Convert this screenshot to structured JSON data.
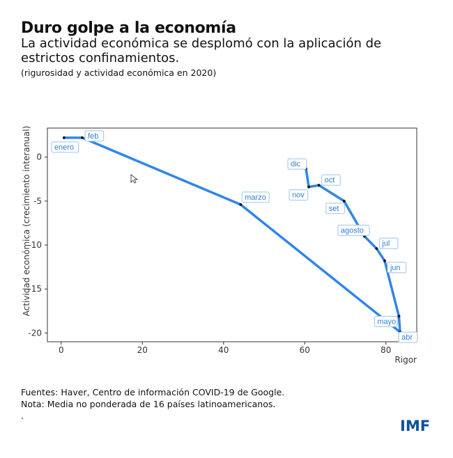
{
  "title": "Duro golpe a la economía",
  "subtitle": "La actividad económica se desplomó con la aplicación de estrictos confinamientos.",
  "note": "(rigurosidad y actividad económica en 2020)",
  "sources": [
    "Fuentes: Haver, Centro de información COVID-19 de Google.",
    "Nota: Media no ponderada de 16 países latinoamericanos.",
    "."
  ],
  "logo": "IMF",
  "chart_data": {
    "type": "line",
    "xlabel": "Rigor",
    "ylabel": "Actividad económica (crecimiento interanual)",
    "xlim": [
      -3.4,
      87.6
    ],
    "ylim": [
      -21,
      3.3
    ],
    "xticks": [
      0,
      20,
      40,
      60,
      80
    ],
    "yticks": [
      0,
      -5,
      -10,
      -15,
      -20
    ],
    "grid": false,
    "line_color": "#2f86e8",
    "points": [
      {
        "label": "enero",
        "x": 0.7,
        "y": 2.2
      },
      {
        "label": "feb",
        "x": 5.2,
        "y": 2.2
      },
      {
        "label": "marzo",
        "x": 44.2,
        "y": -5.4
      },
      {
        "label": "abr",
        "x": 83.5,
        "y": -19.9
      },
      {
        "label": "mayo",
        "x": 83.2,
        "y": -18.1
      },
      {
        "label": "jun",
        "x": 79.7,
        "y": -11.8
      },
      {
        "label": "jul",
        "x": 77.7,
        "y": -10.4
      },
      {
        "label": "agosto",
        "x": 74.7,
        "y": -9.0
      },
      {
        "label": "set",
        "x": 69.7,
        "y": -5.0
      },
      {
        "label": "oct",
        "x": 63.5,
        "y": -3.2
      },
      {
        "label": "nov",
        "x": 61.0,
        "y": -3.4
      },
      {
        "label": "dic",
        "x": 60.3,
        "y": -1.3
      }
    ]
  }
}
